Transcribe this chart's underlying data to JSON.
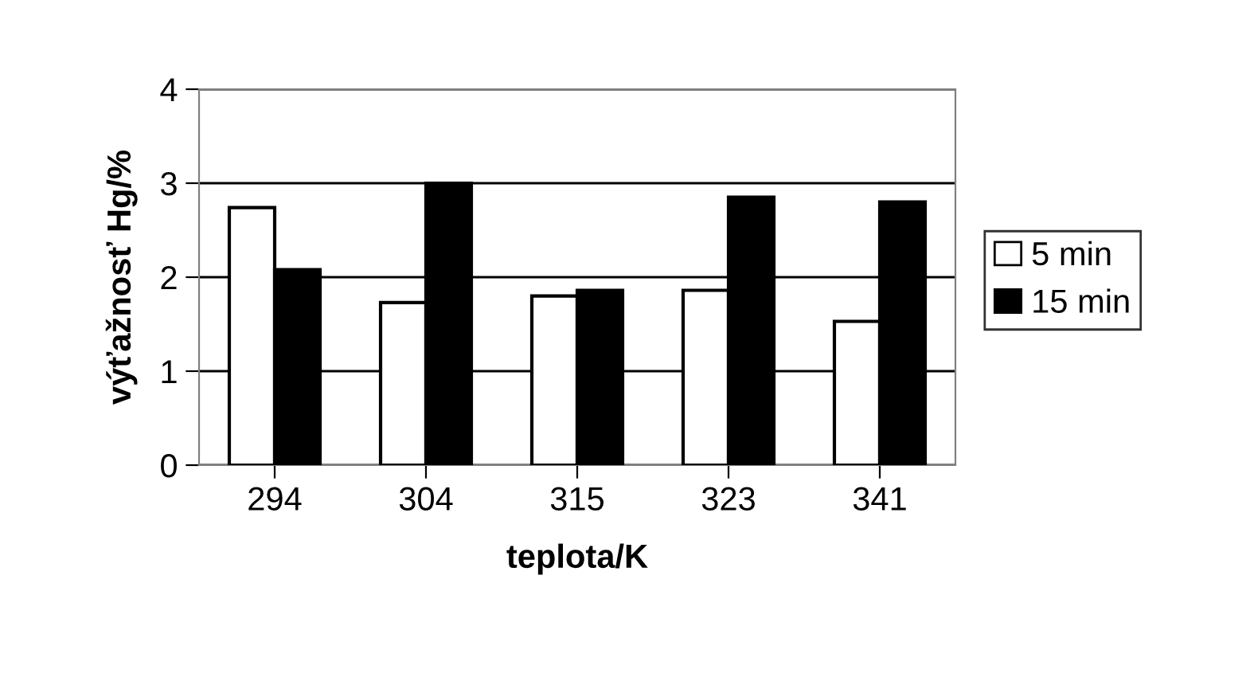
{
  "chart_data": {
    "type": "bar",
    "xlabel": "teplota/K",
    "ylabel": "výťažnosť Hg/%",
    "categories": [
      "294",
      "304",
      "315",
      "323",
      "341"
    ],
    "series": [
      {
        "name": "5 min",
        "color": "#ffffff",
        "values": [
          2.74,
          1.73,
          1.8,
          1.86,
          1.53
        ]
      },
      {
        "name": "15 min",
        "color": "#000000",
        "values": [
          2.08,
          3.0,
          1.86,
          2.85,
          2.8
        ]
      }
    ],
    "ylim": [
      0,
      4
    ],
    "yticks": [
      0,
      1,
      2,
      3,
      4
    ],
    "grid": "y",
    "legend": "right"
  }
}
